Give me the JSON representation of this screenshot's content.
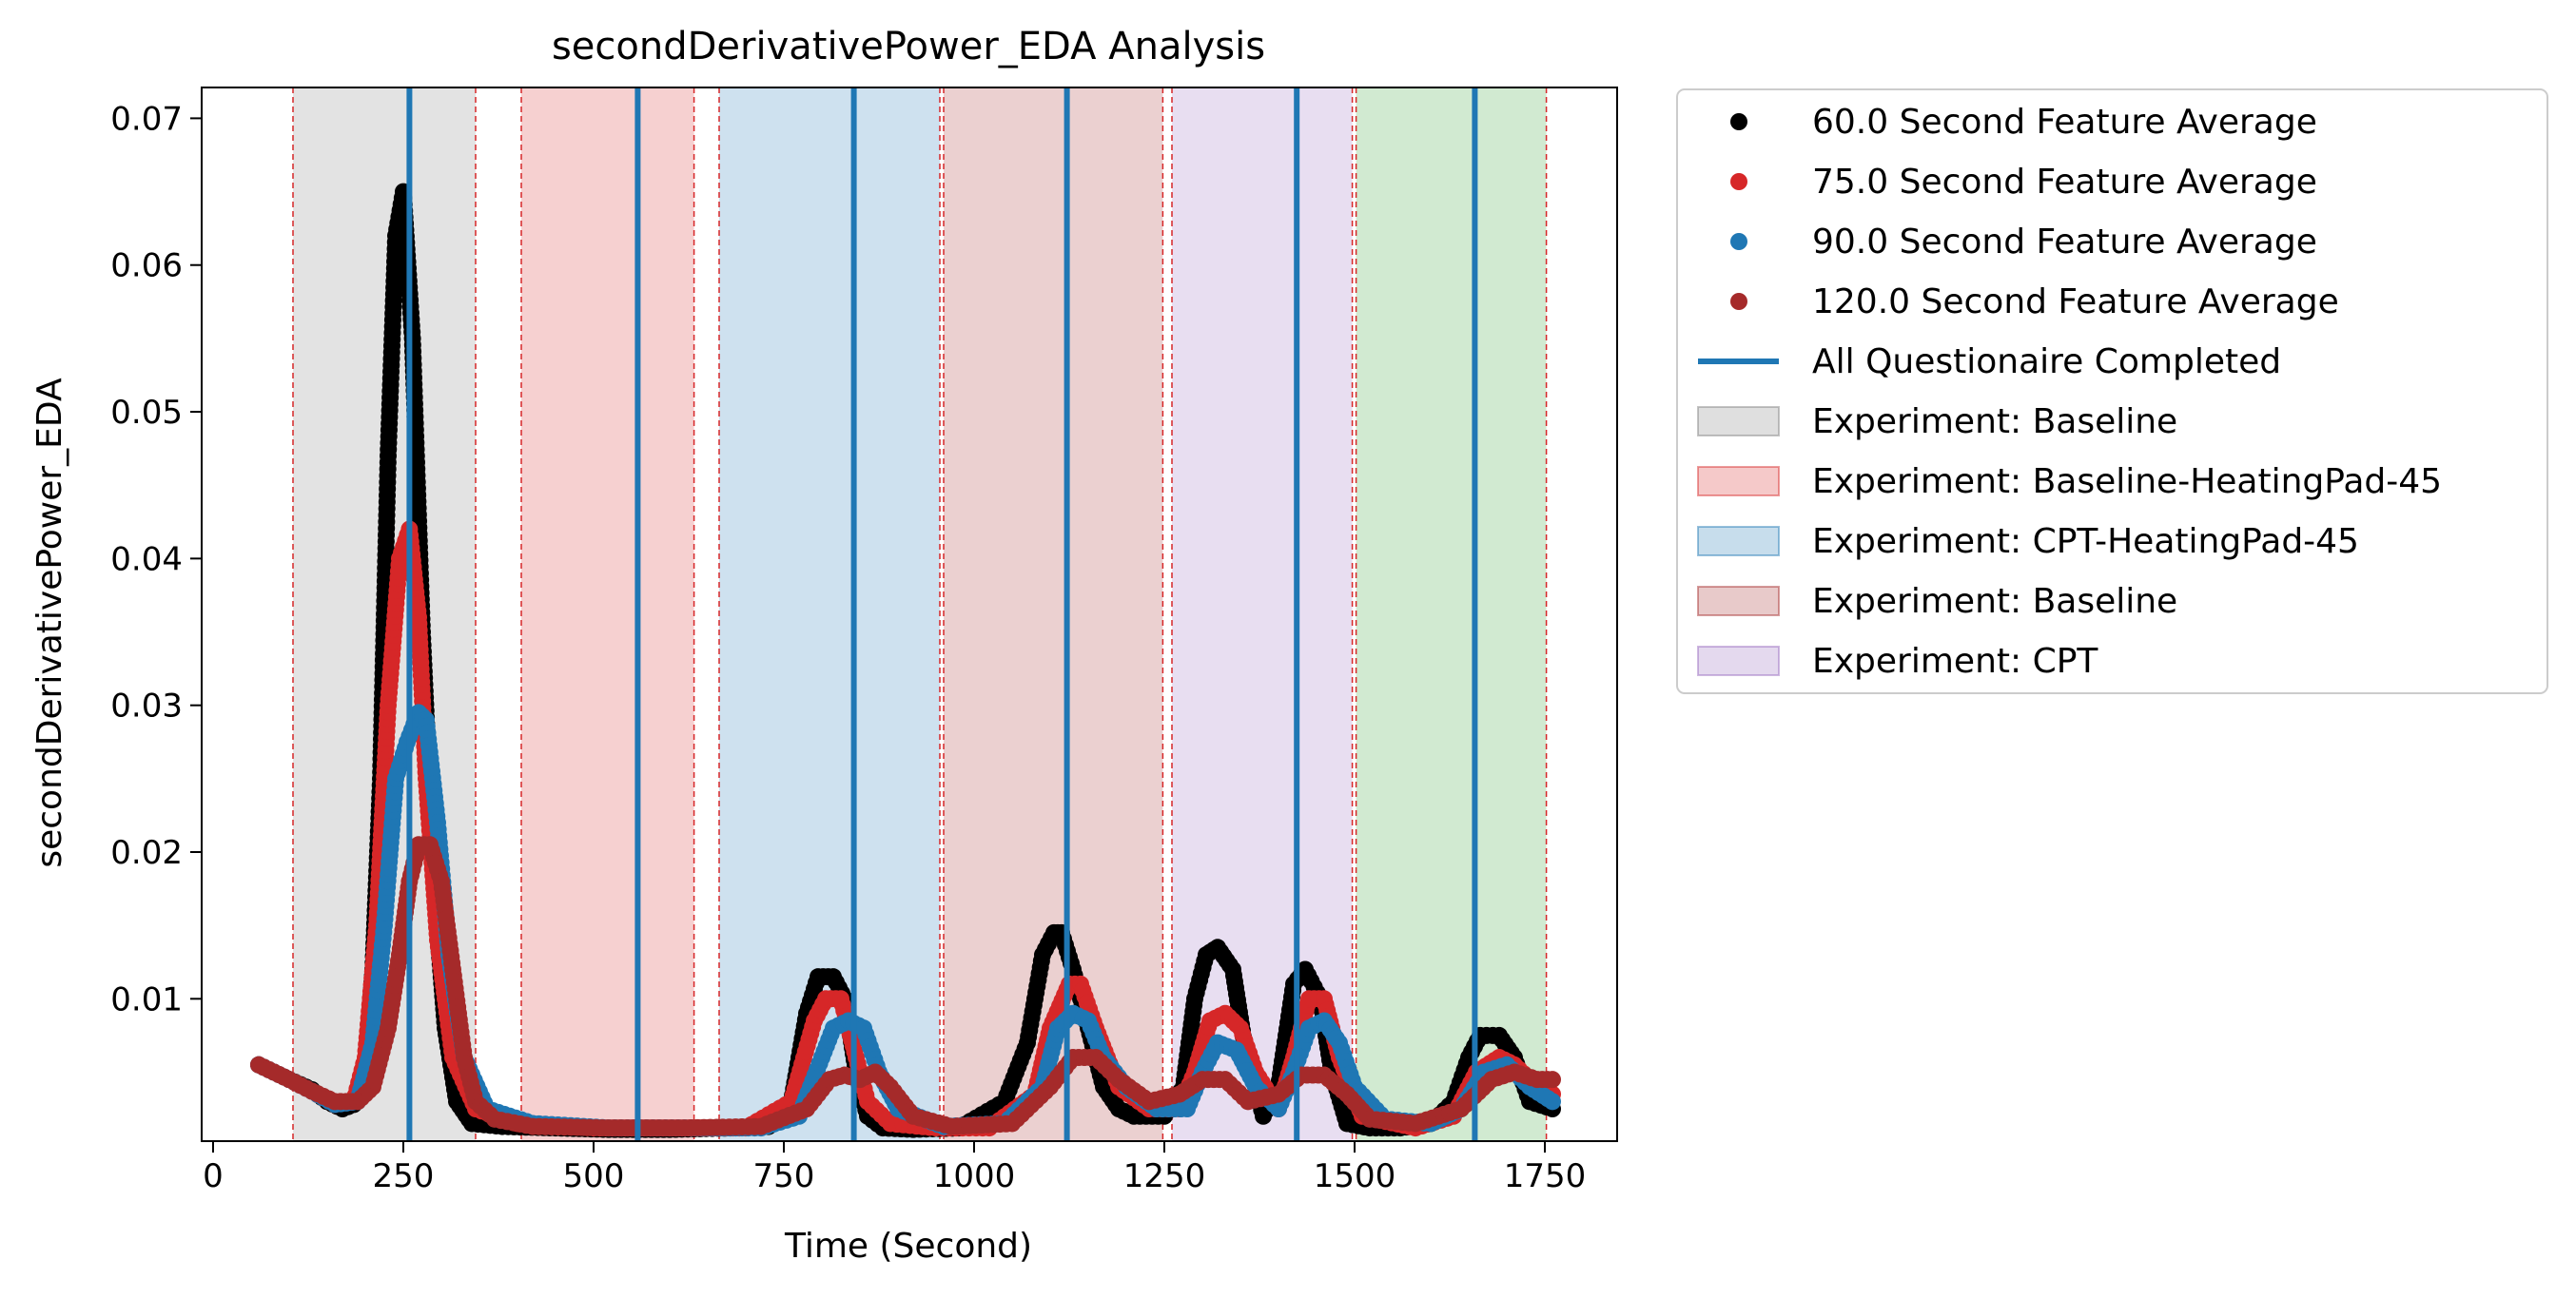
{
  "chart_data": {
    "type": "scatter",
    "title": "secondDerivativePower_EDA Analysis",
    "xlabel": "Time (Second)",
    "ylabel": "secondDerivativePower_EDA",
    "xlim": [
      -15,
      1845
    ],
    "ylim": [
      0.0003,
      0.0721
    ],
    "x_ticks": [
      0,
      250,
      500,
      750,
      1000,
      1250,
      1500,
      1750
    ],
    "y_ticks": [
      0.01,
      0.02,
      0.03,
      0.04,
      0.05,
      0.06,
      0.07
    ],
    "x_tick_labels": [
      "0",
      "250",
      "500",
      "750",
      "1000",
      "1250",
      "1500",
      "1750"
    ],
    "y_tick_labels": [
      "0.01",
      "0.02",
      "0.03",
      "0.04",
      "0.05",
      "0.06",
      "0.07"
    ],
    "grid": false,
    "legend_position": "outside right, top",
    "experiments": [
      {
        "name": "Experiment: Baseline",
        "start": 105,
        "end": 345,
        "color": "#7f7f7f",
        "in_legend": true
      },
      {
        "name": "Experiment: Baseline-HeatingPad-45",
        "start": 405,
        "end": 632,
        "color": "#d62728",
        "in_legend": true
      },
      {
        "name": "Experiment: CPT-HeatingPad-45",
        "start": 665,
        "end": 955,
        "color": "#1f77b4",
        "in_legend": true
      },
      {
        "name": "Experiment: Baseline",
        "start": 960,
        "end": 1248,
        "color": "#a52a2a",
        "in_legend": true
      },
      {
        "name": "Experiment: CPT",
        "start": 1260,
        "end": 1497,
        "color": "#9467bd",
        "in_legend": true
      },
      {
        "name": "",
        "start": 1502,
        "end": 1752,
        "color": "#2ca02c",
        "in_legend": false
      }
    ],
    "experiment_boundaries": [
      105,
      345,
      405,
      632,
      665,
      955,
      960,
      1248,
      1260,
      1497,
      1502,
      1752
    ],
    "questionnaire_lines": {
      "name": "All Questionaire Completed",
      "color": "#1f77b4",
      "x": [
        258,
        558,
        842,
        1122,
        1424,
        1658
      ]
    },
    "series": [
      {
        "name": "60.0 Second Feature Average",
        "color": "#000000",
        "x": [
          60,
          100,
          130,
          150,
          170,
          185,
          200,
          210,
          220,
          230,
          240,
          250,
          262,
          275,
          290,
          305,
          320,
          340,
          380,
          450,
          520,
          600,
          680,
          730,
          760,
          780,
          795,
          815,
          830,
          845,
          860,
          880,
          920,
          980,
          1040,
          1070,
          1090,
          1105,
          1115,
          1130,
          1150,
          1170,
          1190,
          1210,
          1250,
          1275,
          1290,
          1305,
          1320,
          1340,
          1355,
          1380,
          1400,
          1420,
          1435,
          1455,
          1470,
          1490,
          1520,
          1560,
          1600,
          1630,
          1650,
          1665,
          1690,
          1710,
          1730,
          1760
        ],
        "y": [
          0.0055,
          0.0045,
          0.0038,
          0.003,
          0.0025,
          0.0028,
          0.0045,
          0.012,
          0.025,
          0.047,
          0.062,
          0.065,
          0.055,
          0.035,
          0.018,
          0.008,
          0.003,
          0.0015,
          0.0013,
          0.0012,
          0.0011,
          0.0011,
          0.0012,
          0.0013,
          0.003,
          0.009,
          0.0115,
          0.0115,
          0.01,
          0.005,
          0.002,
          0.0012,
          0.0011,
          0.0012,
          0.003,
          0.007,
          0.013,
          0.0145,
          0.0145,
          0.012,
          0.008,
          0.004,
          0.0025,
          0.002,
          0.002,
          0.004,
          0.01,
          0.013,
          0.0135,
          0.012,
          0.007,
          0.002,
          0.004,
          0.011,
          0.012,
          0.01,
          0.005,
          0.0015,
          0.0012,
          0.0012,
          0.0015,
          0.003,
          0.006,
          0.0075,
          0.0075,
          0.006,
          0.003,
          0.0025
        ]
      },
      {
        "name": "75.0 Second Feature Average",
        "color": "#d62728",
        "x": [
          60,
          100,
          130,
          160,
          185,
          200,
          215,
          230,
          245,
          258,
          270,
          280,
          295,
          315,
          345,
          400,
          500,
          600,
          700,
          760,
          790,
          805,
          825,
          845,
          860,
          890,
          950,
          1020,
          1080,
          1100,
          1125,
          1140,
          1160,
          1190,
          1230,
          1270,
          1290,
          1310,
          1330,
          1350,
          1370,
          1400,
          1420,
          1440,
          1460,
          1480,
          1510,
          1580,
          1630,
          1660,
          1690,
          1710,
          1740,
          1760
        ],
        "y": [
          0.0055,
          0.0045,
          0.0037,
          0.0028,
          0.003,
          0.006,
          0.015,
          0.03,
          0.04,
          0.042,
          0.036,
          0.025,
          0.014,
          0.006,
          0.0025,
          0.0015,
          0.0012,
          0.0012,
          0.0012,
          0.003,
          0.0085,
          0.01,
          0.01,
          0.006,
          0.003,
          0.0015,
          0.0012,
          0.0012,
          0.0035,
          0.008,
          0.011,
          0.011,
          0.008,
          0.004,
          0.0025,
          0.0025,
          0.005,
          0.0085,
          0.009,
          0.008,
          0.005,
          0.0025,
          0.006,
          0.01,
          0.01,
          0.006,
          0.002,
          0.0012,
          0.002,
          0.005,
          0.006,
          0.0055,
          0.004,
          0.0035
        ]
      },
      {
        "name": "90.0 Second Feature Average",
        "color": "#1f77b4",
        "x": [
          60,
          100,
          130,
          160,
          190,
          210,
          225,
          240,
          255,
          270,
          280,
          295,
          310,
          330,
          360,
          420,
          520,
          620,
          720,
          770,
          800,
          815,
          835,
          855,
          875,
          900,
          960,
          1040,
          1090,
          1110,
          1130,
          1150,
          1170,
          1200,
          1240,
          1280,
          1300,
          1320,
          1345,
          1370,
          1400,
          1420,
          1440,
          1460,
          1480,
          1500,
          1540,
          1600,
          1640,
          1670,
          1700,
          1730,
          1760
        ],
        "y": [
          0.0055,
          0.0045,
          0.0037,
          0.0028,
          0.003,
          0.007,
          0.015,
          0.025,
          0.0275,
          0.0295,
          0.029,
          0.022,
          0.013,
          0.006,
          0.0025,
          0.0015,
          0.0012,
          0.0012,
          0.0012,
          0.002,
          0.006,
          0.008,
          0.0085,
          0.008,
          0.005,
          0.0025,
          0.0013,
          0.0015,
          0.004,
          0.008,
          0.009,
          0.0085,
          0.006,
          0.004,
          0.0025,
          0.0025,
          0.005,
          0.007,
          0.0065,
          0.004,
          0.0025,
          0.005,
          0.008,
          0.0085,
          0.007,
          0.004,
          0.0018,
          0.0015,
          0.0025,
          0.005,
          0.0055,
          0.004,
          0.003
        ]
      },
      {
        "name": "120.0 Second Feature Average",
        "color": "#a52a2a",
        "x": [
          60,
          100,
          130,
          160,
          190,
          210,
          230,
          245,
          258,
          270,
          285,
          300,
          315,
          330,
          345,
          370,
          420,
          520,
          620,
          720,
          780,
          810,
          830,
          850,
          870,
          890,
          920,
          970,
          1050,
          1100,
          1130,
          1160,
          1190,
          1230,
          1270,
          1300,
          1330,
          1360,
          1400,
          1430,
          1460,
          1490,
          1520,
          1580,
          1640,
          1680,
          1710,
          1740,
          1760
        ],
        "y": [
          0.0055,
          0.0045,
          0.0037,
          0.003,
          0.003,
          0.004,
          0.008,
          0.013,
          0.018,
          0.0205,
          0.0205,
          0.018,
          0.012,
          0.006,
          0.003,
          0.0018,
          0.0013,
          0.0012,
          0.0012,
          0.0013,
          0.0025,
          0.0045,
          0.0048,
          0.0045,
          0.005,
          0.004,
          0.002,
          0.0013,
          0.0015,
          0.004,
          0.006,
          0.006,
          0.0045,
          0.003,
          0.0035,
          0.0045,
          0.0045,
          0.003,
          0.0035,
          0.0048,
          0.0048,
          0.0035,
          0.0018,
          0.0015,
          0.0025,
          0.0045,
          0.005,
          0.0045,
          0.0045
        ]
      }
    ]
  }
}
